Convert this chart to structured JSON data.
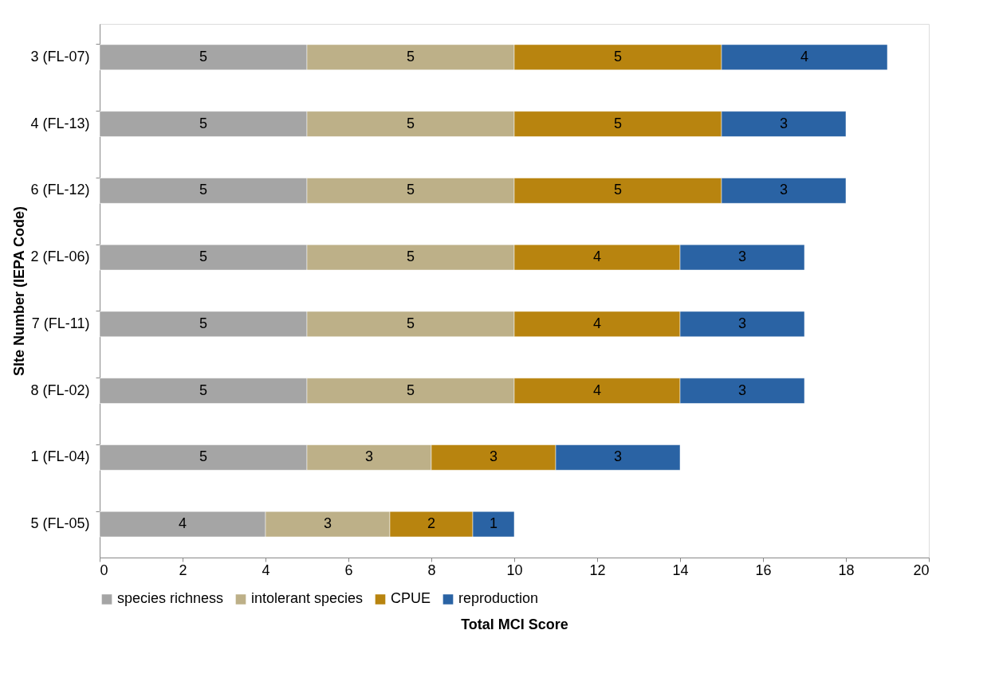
{
  "chart_data": {
    "type": "bar",
    "orientation": "horizontal",
    "stacked": true,
    "data_labels": true,
    "legend": "bottom",
    "grid": false,
    "xlabel": "Total MCI Score",
    "ylabel": "SIte Number (IEPA Code)",
    "categories": [
      "3 (FL-07)",
      "4 (FL-13)",
      "6 (FL-12)",
      "2 (FL-06)",
      "7 (FL-11)",
      "8 (FL-02)",
      "1 (FL-04)",
      "5 (FL-05)"
    ],
    "xlim": [
      0,
      20
    ],
    "xticks": [
      0,
      2,
      4,
      6,
      8,
      10,
      12,
      14,
      16,
      18,
      20
    ],
    "series": [
      {
        "name": "species richness",
        "color": "#a5a5a5",
        "values": [
          5,
          5,
          5,
          5,
          5,
          5,
          5,
          4
        ]
      },
      {
        "name": "intolerant species",
        "color": "#bdb088",
        "values": [
          5,
          5,
          5,
          5,
          5,
          5,
          3,
          3
        ]
      },
      {
        "name": "CPUE",
        "color": "#b8840f",
        "values": [
          5,
          5,
          5,
          4,
          4,
          4,
          3,
          2
        ]
      },
      {
        "name": "reproduction",
        "color": "#2a63a4",
        "values": [
          4,
          3,
          3,
          3,
          3,
          3,
          3,
          1
        ]
      }
    ]
  }
}
